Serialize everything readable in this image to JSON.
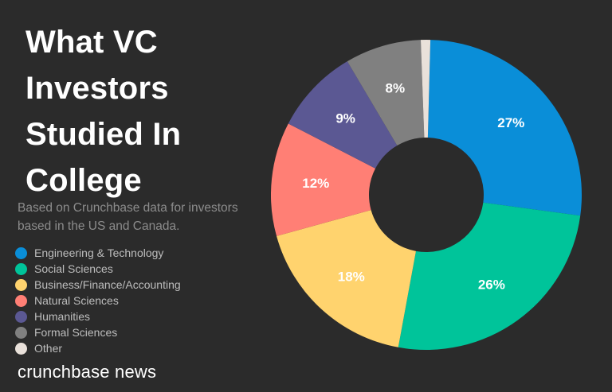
{
  "title_lines": [
    "What VC",
    "Investors",
    "Studied In",
    "College"
  ],
  "subtitle": "Based on Crunchbase data for investors based in the US and Canada.",
  "brand": "crunchbase news",
  "background": "#2b2b2b",
  "chart_data": {
    "type": "pie",
    "variant": "donut",
    "title": "What VC Investors Studied In College",
    "legend_position": "left",
    "start_angle_deg": 1.5,
    "slices": [
      {
        "label": "Engineering & Technology",
        "value": 27,
        "display": "27%",
        "color": "#0a8ed8"
      },
      {
        "label": "Social Sciences",
        "value": 26,
        "display": "26%",
        "color": "#00c49a"
      },
      {
        "label": "Business/Finance/Accounting",
        "value": 18,
        "display": "18%",
        "color": "#ffd36e"
      },
      {
        "label": "Natural Sciences",
        "value": 12,
        "display": "12%",
        "color": "#ff7f75"
      },
      {
        "label": "Humanities",
        "value": 9,
        "display": "9%",
        "color": "#5b5893"
      },
      {
        "label": "Formal Sciences",
        "value": 8,
        "display": "8%",
        "color": "#808080"
      },
      {
        "label": "Other",
        "value": 1,
        "display": "",
        "color": "#e9e1da"
      }
    ]
  }
}
